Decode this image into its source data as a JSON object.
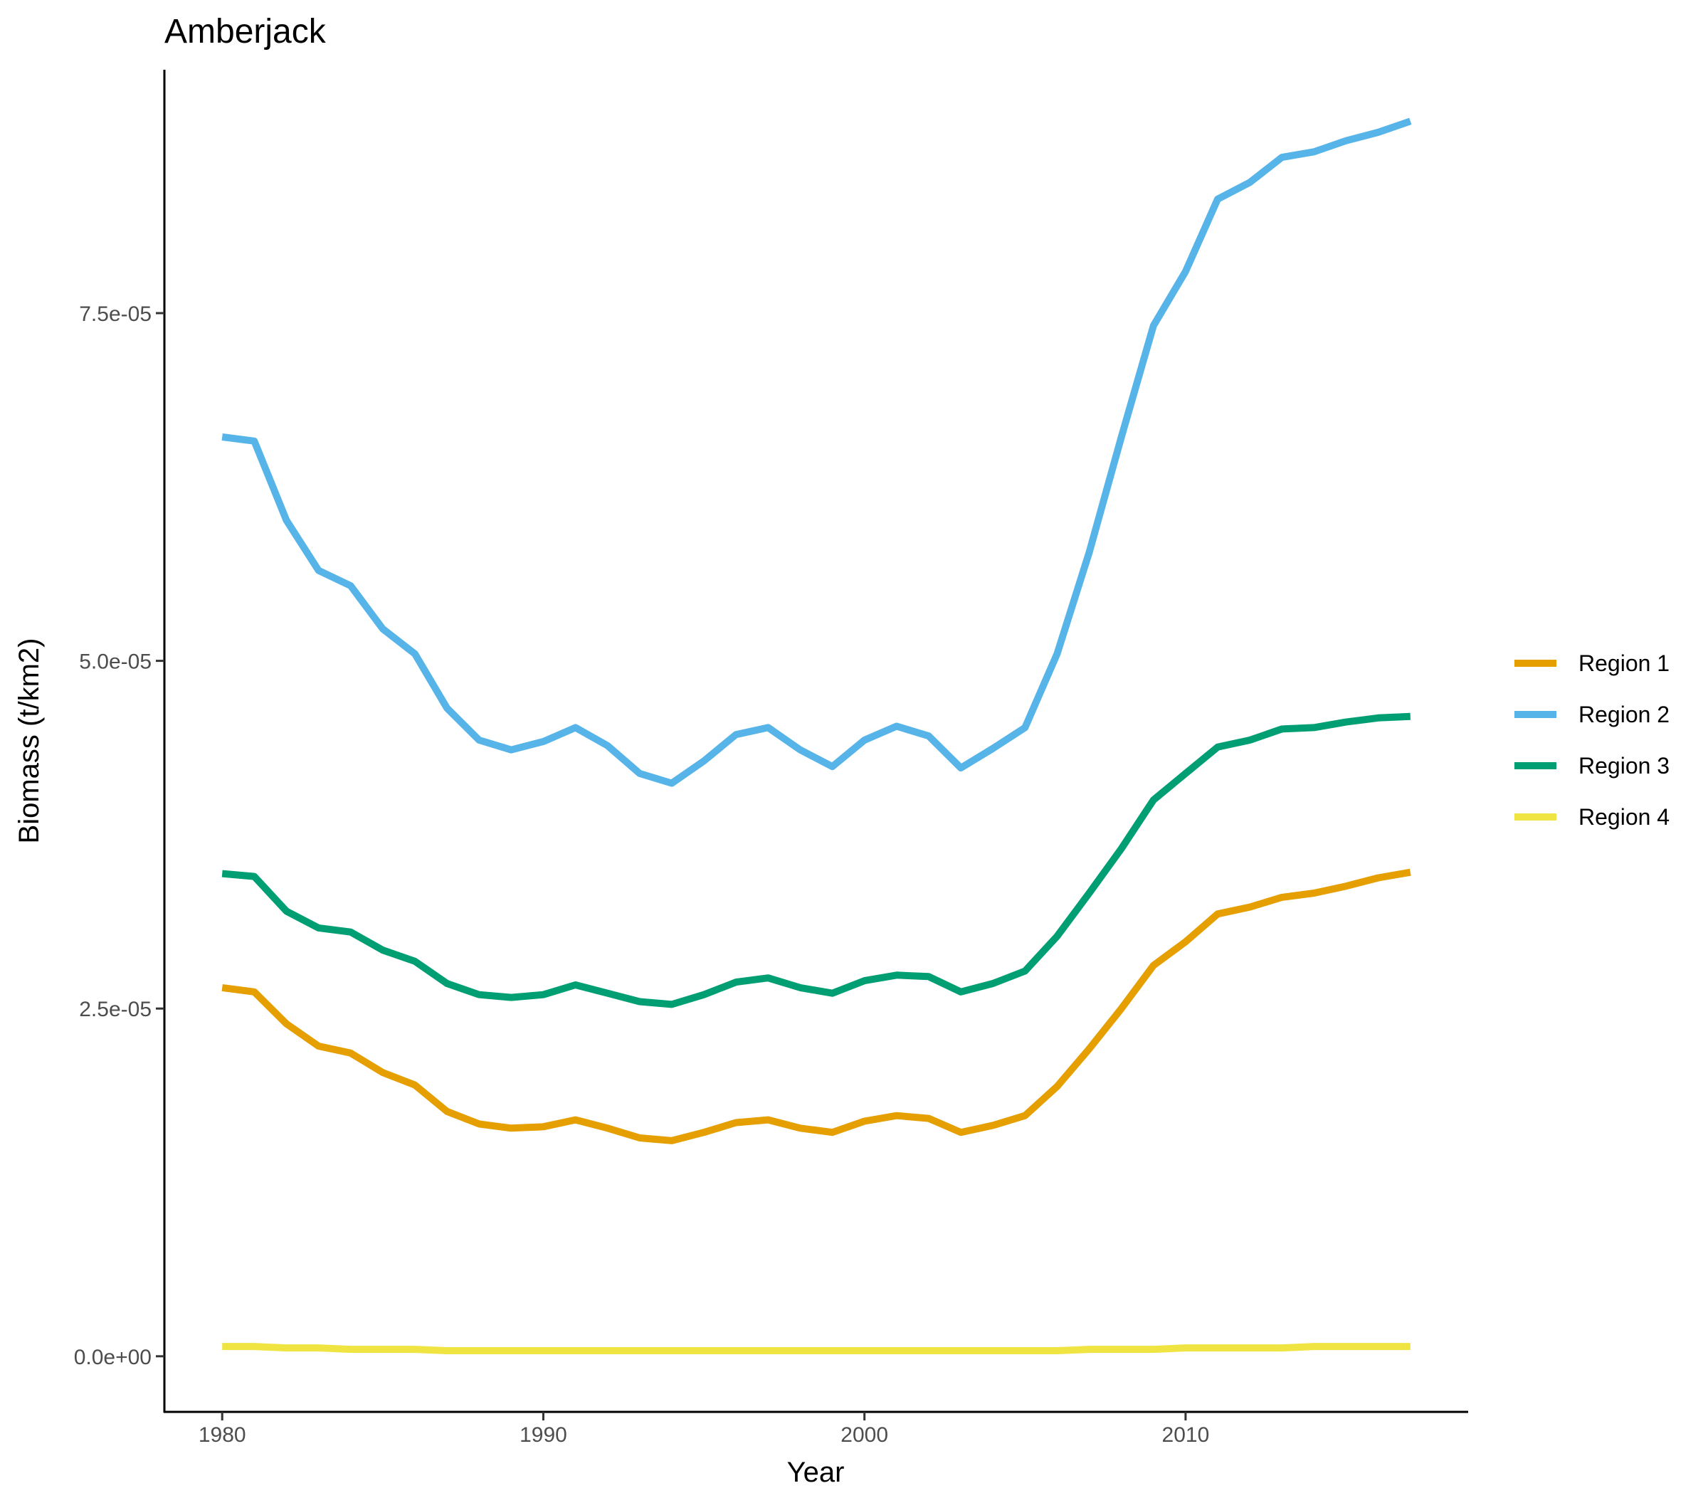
{
  "chart_data": {
    "type": "line",
    "title": "Amberjack",
    "xlabel": "Year",
    "ylabel": "Biomass (t/km2)",
    "xlim": [
      1978.2,
      2018.8
    ],
    "ylim": [
      -4e-06,
      9.25e-05
    ],
    "x_ticks": [
      1980,
      1990,
      2000,
      2010
    ],
    "x_tick_labels": [
      "1980",
      "1990",
      "2000",
      "2010"
    ],
    "y_ticks": [
      0,
      2.5e-05,
      5e-05,
      7.5e-05
    ],
    "y_tick_labels": [
      "0.0e+00",
      "2.5e-05",
      "5.0e-05",
      "7.5e-05"
    ],
    "legend_position": "right",
    "x": [
      1980,
      1981,
      1982,
      1983,
      1984,
      1985,
      1986,
      1987,
      1988,
      1989,
      1990,
      1991,
      1992,
      1993,
      1994,
      1995,
      1996,
      1997,
      1998,
      1999,
      2000,
      2001,
      2002,
      2003,
      2004,
      2005,
      2006,
      2007,
      2008,
      2009,
      2010,
      2011,
      2012,
      2013,
      2014,
      2015,
      2016,
      2017
    ],
    "series": [
      {
        "name": "Region 1",
        "color": "#E69F00",
        "values": [
          2.65e-05,
          2.62e-05,
          2.39e-05,
          2.23e-05,
          2.18e-05,
          2.04e-05,
          1.95e-05,
          1.76e-05,
          1.67e-05,
          1.64e-05,
          1.65e-05,
          1.7e-05,
          1.64e-05,
          1.57e-05,
          1.55e-05,
          1.61e-05,
          1.68e-05,
          1.7e-05,
          1.64e-05,
          1.61e-05,
          1.69e-05,
          1.73e-05,
          1.71e-05,
          1.61e-05,
          1.66e-05,
          1.73e-05,
          1.94e-05,
          2.21e-05,
          2.5e-05,
          2.81e-05,
          2.98e-05,
          3.18e-05,
          3.23e-05,
          3.3e-05,
          3.33e-05,
          3.38e-05,
          3.44e-05,
          3.48e-05
        ]
      },
      {
        "name": "Region 2",
        "color": "#56B4E9",
        "values": [
          6.61e-05,
          6.58e-05,
          6.01e-05,
          5.65e-05,
          5.54e-05,
          5.23e-05,
          5.05e-05,
          4.66e-05,
          4.43e-05,
          4.36e-05,
          4.42e-05,
          4.52e-05,
          4.39e-05,
          4.19e-05,
          4.12e-05,
          4.28e-05,
          4.47e-05,
          4.52e-05,
          4.36e-05,
          4.24e-05,
          4.43e-05,
          4.53e-05,
          4.46e-05,
          4.23e-05,
          4.37e-05,
          4.52e-05,
          5.05e-05,
          5.78e-05,
          6.61e-05,
          7.41e-05,
          7.8e-05,
          8.32e-05,
          8.44e-05,
          8.62e-05,
          8.66e-05,
          8.74e-05,
          8.8e-05,
          8.88e-05
        ]
      },
      {
        "name": "Region 3",
        "color": "#009E73",
        "values": [
          3.47e-05,
          3.45e-05,
          3.2e-05,
          3.08e-05,
          3.05e-05,
          2.92e-05,
          2.84e-05,
          2.68e-05,
          2.6e-05,
          2.58e-05,
          2.6e-05,
          2.67e-05,
          2.61e-05,
          2.55e-05,
          2.53e-05,
          2.6e-05,
          2.69e-05,
          2.72e-05,
          2.65e-05,
          2.61e-05,
          2.7e-05,
          2.74e-05,
          2.73e-05,
          2.62e-05,
          2.68e-05,
          2.77e-05,
          3.02e-05,
          3.33e-05,
          3.65e-05,
          4e-05,
          4.19e-05,
          4.38e-05,
          4.43e-05,
          4.51e-05,
          4.52e-05,
          4.56e-05,
          4.59e-05,
          4.6e-05
        ]
      },
      {
        "name": "Region 4",
        "color": "#F0E442",
        "values": [
          7e-07,
          7e-07,
          6e-07,
          6e-07,
          5e-07,
          5e-07,
          5e-07,
          4e-07,
          4e-07,
          4e-07,
          4e-07,
          4e-07,
          4e-07,
          4e-07,
          4e-07,
          4e-07,
          4e-07,
          4e-07,
          4e-07,
          4e-07,
          4e-07,
          4e-07,
          4e-07,
          4e-07,
          4e-07,
          4e-07,
          4e-07,
          5e-07,
          5e-07,
          5e-07,
          6e-07,
          6e-07,
          6e-07,
          6e-07,
          7e-07,
          7e-07,
          7e-07,
          7e-07
        ]
      }
    ]
  }
}
